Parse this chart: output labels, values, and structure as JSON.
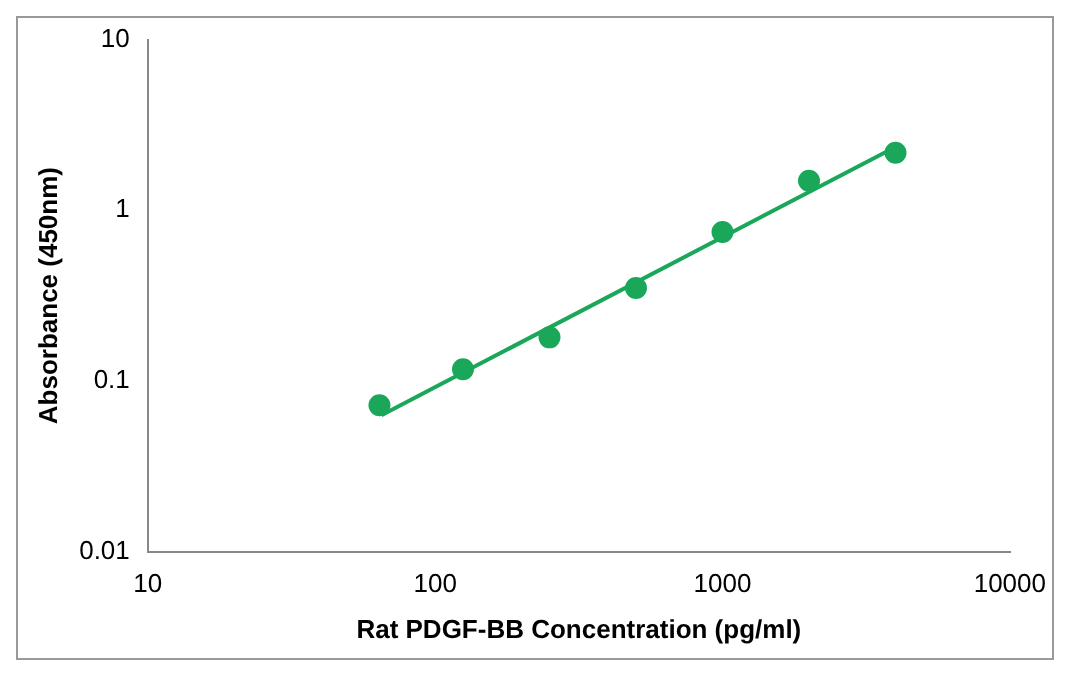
{
  "chart_data": {
    "type": "scatter",
    "xlabel": "Rat PDGF-BB Concentration (pg/ml)",
    "ylabel": "Absorbance (450nm)",
    "log": "xy",
    "xlim": [
      10,
      10000
    ],
    "ylim": [
      0.01,
      10
    ],
    "xticks": [
      10,
      100,
      1000,
      10000
    ],
    "yticks": [
      0.01,
      0.1,
      1,
      10
    ],
    "grid": false,
    "legend": false,
    "marker": "circle",
    "series": [
      {
        "color": "#1aa75a",
        "x": [
          64,
          125,
          250,
          500,
          1000,
          2000,
          4000
        ],
        "values": [
          0.072,
          0.117,
          0.18,
          0.35,
          0.745,
          1.49,
          2.17
        ]
      },
      {
        "type": "line",
        "color": "#1aa75a",
        "marker": "none",
        "line_style": "solid",
        "x": [
          65,
          4000
        ],
        "values": [
          0.063,
          2.35
        ]
      }
    ]
  }
}
